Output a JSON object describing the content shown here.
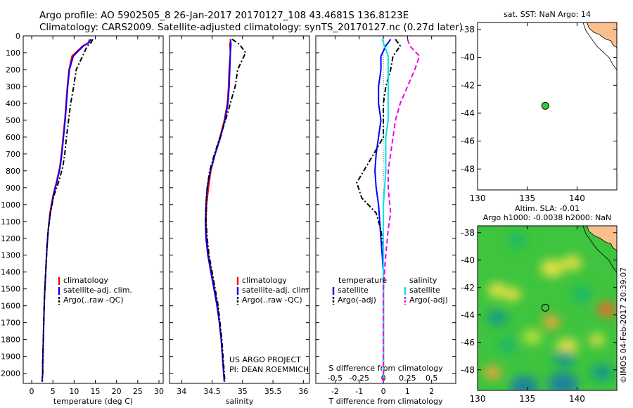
{
  "header": {
    "line1": "Argo profile: AO 5902505_8 26-Jan-2017 20170127_108 43.4681S 136.8123E",
    "line2": "Climatology: CARS2009. Satellite-adjusted climatology: synTS_20170127.nc (0.27d later)"
  },
  "credit": {
    "project": "US ARGO PROJECT",
    "pi": "PI: DEAN ROEMMICH",
    "imos": "©IMOS 04-Feb-2017 20:39:07"
  },
  "chart_data": [
    {
      "id": "temperature",
      "type": "line",
      "xlabel": "temperature (deg C)",
      "ylabel": "",
      "xlim": [
        -2,
        31
      ],
      "ylim": [
        2060,
        0
      ],
      "xticks": [
        0,
        5,
        10,
        15,
        20,
        25,
        30
      ],
      "yticks": [
        0,
        100,
        200,
        300,
        400,
        500,
        600,
        700,
        800,
        900,
        1000,
        1100,
        1200,
        1300,
        1400,
        1500,
        1600,
        1700,
        1800,
        1900,
        2000
      ],
      "legend": [
        "climatology",
        "satellite-adj. clim.",
        "Argo(..raw -QC)"
      ],
      "series": [
        {
          "name": "climatology",
          "color": "#ff0000",
          "dash": "",
          "x": [
            13.6,
            13.4,
            12.0,
            9.5,
            8.8,
            8.4,
            8.1,
            7.8,
            7.4,
            7.0,
            6.6,
            5.9,
            5.0,
            4.3,
            3.9,
            3.6,
            3.4,
            3.2,
            3.0,
            2.9,
            2.8,
            2.7,
            2.6,
            2.6,
            2.5,
            2.5
          ],
          "y": [
            20,
            40,
            60,
            120,
            200,
            300,
            400,
            500,
            600,
            700,
            780,
            860,
            950,
            1050,
            1150,
            1250,
            1350,
            1450,
            1550,
            1650,
            1750,
            1850,
            1950,
            2000,
            2030,
            2050
          ]
        },
        {
          "name": "satellite-adj. clim.",
          "color": "#0000ff",
          "dash": "",
          "x": [
            14.0,
            13.5,
            12.2,
            9.8,
            8.9,
            8.5,
            8.2,
            7.9,
            7.5,
            7.1,
            6.7,
            6.0,
            5.1,
            4.4,
            3.9,
            3.6,
            3.4,
            3.2,
            3.0,
            2.9,
            2.8,
            2.7,
            2.6,
            2.6,
            2.5,
            2.5
          ],
          "y": [
            20,
            40,
            60,
            120,
            200,
            300,
            400,
            500,
            600,
            700,
            780,
            860,
            950,
            1050,
            1150,
            1250,
            1350,
            1450,
            1550,
            1650,
            1750,
            1850,
            1950,
            2000,
            2030,
            2050
          ]
        },
        {
          "name": "Argo(..raw -QC)",
          "color": "#000000",
          "dash": "7,3,2,3",
          "x": [
            14.4,
            14.0,
            13.1,
            12.0,
            10.5,
            9.9,
            9.2,
            8.7,
            8.2,
            7.8,
            7.3,
            6.3,
            5.2,
            4.4,
            3.9,
            3.6,
            3.4,
            3.2,
            3.0,
            2.9,
            2.8,
            2.7,
            2.6,
            2.6,
            2.5,
            2.5
          ],
          "y": [
            20,
            40,
            60,
            120,
            200,
            300,
            400,
            500,
            600,
            700,
            780,
            870,
            950,
            1050,
            1150,
            1250,
            1350,
            1450,
            1550,
            1650,
            1750,
            1850,
            1950,
            2000,
            2030,
            2050
          ]
        }
      ]
    },
    {
      "id": "salinity",
      "type": "line",
      "xlabel": "salinity",
      "ylabel": "",
      "xlim": [
        33.8,
        36.1
      ],
      "ylim": [
        2060,
        0
      ],
      "xticks": [
        34,
        34.5,
        35,
        35.5,
        36
      ],
      "yticks": [],
      "legend": [
        "climatology",
        "satellite-adj. clim.",
        "Argo(..raw -QC)"
      ],
      "series": [
        {
          "name": "climatology",
          "color": "#ff0000",
          "dash": "",
          "x": [
            34.81,
            34.79,
            34.8,
            34.78,
            34.77,
            34.75,
            34.7,
            34.63,
            34.55,
            34.48,
            34.44,
            34.41,
            34.4,
            34.41,
            34.44,
            34.49,
            34.54,
            34.59,
            34.62,
            34.65,
            34.67,
            34.68,
            34.69,
            34.7
          ],
          "y": [
            20,
            50,
            100,
            200,
            300,
            400,
            500,
            600,
            700,
            800,
            900,
            1000,
            1100,
            1200,
            1300,
            1400,
            1500,
            1600,
            1700,
            1800,
            1900,
            1950,
            2000,
            2050
          ]
        },
        {
          "name": "satellite-adj. clim.",
          "color": "#0000ff",
          "dash": "",
          "x": [
            34.8,
            34.81,
            34.8,
            34.79,
            34.78,
            34.76,
            34.71,
            34.64,
            34.55,
            34.47,
            34.42,
            34.4,
            34.39,
            34.4,
            34.43,
            34.48,
            34.53,
            34.58,
            34.62,
            34.65,
            34.67,
            34.68,
            34.69,
            34.7
          ],
          "y": [
            20,
            50,
            100,
            200,
            300,
            400,
            500,
            600,
            700,
            800,
            900,
            1000,
            1100,
            1200,
            1300,
            1400,
            1500,
            1600,
            1700,
            1800,
            1900,
            1950,
            2000,
            2050
          ]
        },
        {
          "name": "Argo(..raw -QC)",
          "color": "#000000",
          "dash": "7,3,2,3",
          "x": [
            34.83,
            34.95,
            35.05,
            34.92,
            34.88,
            34.8,
            34.72,
            34.63,
            34.54,
            34.46,
            34.42,
            34.4,
            34.4,
            34.42,
            34.45,
            34.5,
            34.55,
            34.6,
            34.63,
            34.66,
            34.68,
            34.69,
            34.7,
            34.71
          ],
          "y": [
            20,
            50,
            100,
            200,
            300,
            400,
            500,
            600,
            700,
            800,
            900,
            1000,
            1100,
            1200,
            1300,
            1400,
            1500,
            1600,
            1700,
            1800,
            1900,
            1950,
            2000,
            2050
          ]
        }
      ]
    },
    {
      "id": "difference",
      "type": "line",
      "xlabel": "T difference from climatology",
      "ylabel": "",
      "xlim": [
        -2.8,
        3.0
      ],
      "ylim": [
        2060,
        0
      ],
      "xticks": [
        -2,
        -1,
        0,
        1,
        2
      ],
      "xlabel_top": "S difference from climatology",
      "xticks_top": [
        "-0.5",
        "-0.25",
        "0",
        "0.25",
        "0.5"
      ],
      "xticks_top_pos": [
        -2,
        -1,
        0,
        1,
        2
      ],
      "yticks": [],
      "legend": [
        "temperature",
        "satellite",
        "Argo(-adj)",
        "salinity",
        "satellite",
        "Argo(-adj)"
      ],
      "series": [
        {
          "name": "satellite",
          "color": "#0000ff",
          "dash": "",
          "x": [
            0.3,
            0.1,
            -0.1,
            -0.1,
            -0.2,
            -0.2,
            -0.1,
            -0.2,
            -0.3,
            -0.35,
            -0.3,
            -0.2,
            -0.15,
            -0.1,
            -0.05,
            0,
            0,
            0,
            0,
            0,
            0
          ],
          "y": [
            20,
            60,
            120,
            200,
            300,
            400,
            500,
            600,
            700,
            800,
            900,
            1000,
            1100,
            1200,
            1300,
            1400,
            1500,
            1600,
            1800,
            1950,
            2050
          ]
        },
        {
          "name": "Argo(-adj)",
          "color": "#000000",
          "dash": "7,3,2,3",
          "x": [
            0.5,
            0.7,
            0.4,
            0.3,
            0.1,
            0.0,
            0.0,
            0.0,
            -0.4,
            -1.1,
            -0.9,
            -0.3,
            -0.1,
            0,
            0,
            0,
            0,
            0,
            0,
            0,
            0
          ],
          "y": [
            20,
            60,
            120,
            200,
            300,
            400,
            500,
            600,
            700,
            870,
            960,
            1050,
            1150,
            1250,
            1350,
            1450,
            1550,
            1650,
            1800,
            1950,
            2050
          ]
        },
        {
          "name": "satellite",
          "color": "#00e5e5",
          "dash": "",
          "x": [
            -0.05,
            0.05,
            0.2,
            0.2,
            0.2,
            0.2,
            0.2,
            0.1,
            0.1,
            0.1,
            0.05,
            0.0,
            0.0,
            0.0,
            0.0,
            0,
            0,
            0
          ],
          "y": [
            20,
            60,
            120,
            200,
            300,
            400,
            500,
            600,
            700,
            800,
            900,
            1000,
            1100,
            1300,
            1500,
            1700,
            1900,
            2050
          ]
        },
        {
          "name": "Argo(-adj)",
          "color": "#ee00ee",
          "dash": "7,4",
          "x": [
            1.0,
            1.1,
            1.5,
            1.3,
            1.0,
            0.7,
            0.5,
            0.4,
            0.3,
            0.2,
            0.2,
            0.3,
            0.2,
            0.1,
            0,
            0,
            0,
            0
          ],
          "y": [
            20,
            60,
            120,
            200,
            300,
            400,
            500,
            600,
            700,
            800,
            900,
            1050,
            1150,
            1300,
            1500,
            1700,
            1900,
            2050
          ]
        }
      ]
    },
    {
      "id": "sst_map",
      "type": "scatter",
      "title": "sat. SST: NaN Argo: 14",
      "xlim": [
        130,
        144
      ],
      "ylim": [
        -49.5,
        -37.5
      ],
      "xticks": [
        130,
        135,
        140
      ],
      "yticks": [
        -38,
        -40,
        -42,
        -44,
        -46,
        -48
      ],
      "yticklabels": [
        "-38",
        "-40",
        "-42",
        "-44",
        "-46",
        "-48"
      ],
      "points": [
        {
          "x": 136.81,
          "y": -43.47,
          "color": "#33cc33"
        }
      ]
    },
    {
      "id": "sla_map",
      "type": "heatmap",
      "title": "Altim. SLA: -0.01",
      "subtitle": "Argo h1000: -0.0038 h2000: NaN",
      "xlim": [
        130,
        144
      ],
      "ylim": [
        -49.5,
        -37.5
      ],
      "xticks": [
        130,
        135,
        140
      ],
      "yticks": [
        -38,
        -40,
        -42,
        -44,
        -46,
        -48
      ],
      "yticklabels": [
        "-38",
        "-40",
        "-42",
        "-44",
        "-46",
        "-48"
      ],
      "points": [
        {
          "x": 136.81,
          "y": -43.47,
          "color": "#000000"
        }
      ],
      "blobs": [
        {
          "x": 137.5,
          "y": -40.6,
          "r": 1.2,
          "v": 0.35
        },
        {
          "x": 139.5,
          "y": -40.2,
          "r": 1.0,
          "v": 0.3
        },
        {
          "x": 132.0,
          "y": -42.2,
          "r": 1.0,
          "v": 0.35
        },
        {
          "x": 133.5,
          "y": -42.5,
          "r": 0.9,
          "v": 0.3
        },
        {
          "x": 143.0,
          "y": -43.6,
          "r": 1.0,
          "v": 0.9
        },
        {
          "x": 137.4,
          "y": -44.5,
          "r": 0.9,
          "v": 0.6
        },
        {
          "x": 131.5,
          "y": -48.2,
          "r": 0.9,
          "v": 0.55
        },
        {
          "x": 139.0,
          "y": -46.3,
          "r": 1.1,
          "v": 0.3
        },
        {
          "x": 134.7,
          "y": -49.2,
          "r": 1.4,
          "v": -0.6
        },
        {
          "x": 138.6,
          "y": -49.0,
          "r": 1.5,
          "v": -0.7
        },
        {
          "x": 138.7,
          "y": -47.2,
          "r": 1.1,
          "v": -0.5
        },
        {
          "x": 132.0,
          "y": -44.2,
          "r": 1.0,
          "v": -0.4
        },
        {
          "x": 134.0,
          "y": -38.6,
          "r": 0.9,
          "v": -0.3
        },
        {
          "x": 133.0,
          "y": -46.2,
          "r": 1.0,
          "v": -0.3
        },
        {
          "x": 142.5,
          "y": -48.2,
          "r": 1.1,
          "v": -0.45
        },
        {
          "x": 140.5,
          "y": -42.5,
          "r": 1.0,
          "v": -0.2
        },
        {
          "x": 135.5,
          "y": -45.6,
          "r": 1.0,
          "v": 0.15
        },
        {
          "x": 142.0,
          "y": -45.8,
          "r": 0.8,
          "v": 0.25
        }
      ]
    }
  ]
}
